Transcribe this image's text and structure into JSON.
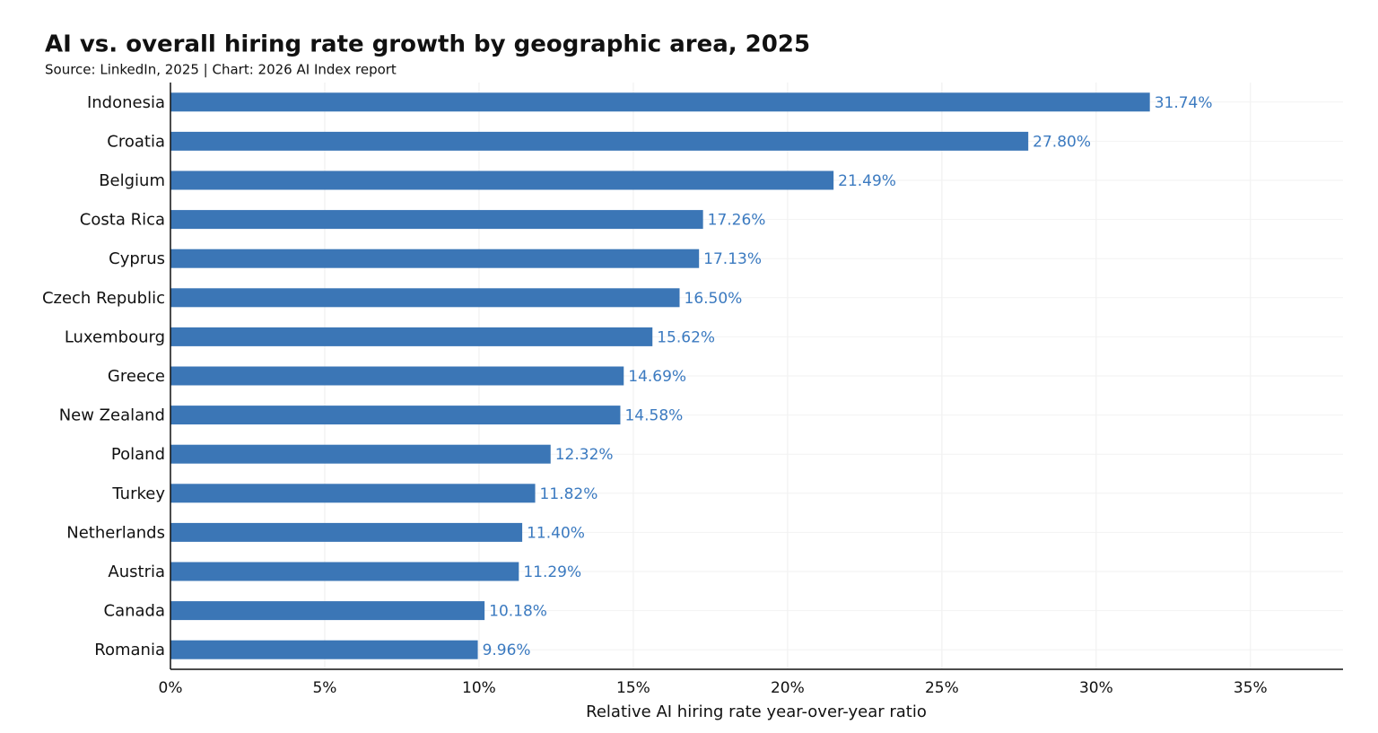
{
  "chart_data": {
    "type": "bar",
    "orientation": "horizontal",
    "title": "AI vs. overall hiring rate growth by geographic area, 2025",
    "subtitle": "Source: LinkedIn, 2025 | Chart: 2026 AI Index report",
    "x_label": "Relative AI hiring rate year-over-year ratio",
    "categories": [
      "Indonesia",
      "Croatia",
      "Belgium",
      "Costa Rica",
      "Cyprus",
      "Czech Republic",
      "Luxembourg",
      "Greece",
      "New Zealand",
      "Poland",
      "Turkey",
      "Netherlands",
      "Austria",
      "Canada",
      "Romania"
    ],
    "values": [
      31.74,
      27.8,
      21.49,
      17.26,
      17.13,
      16.5,
      15.62,
      14.69,
      14.58,
      12.32,
      11.82,
      11.4,
      11.29,
      10.18,
      9.96
    ],
    "value_labels": [
      "31.74%",
      "27.80%",
      "21.49%",
      "17.26%",
      "17.13%",
      "16.50%",
      "15.62%",
      "14.69%",
      "14.58%",
      "12.32%",
      "11.82%",
      "11.40%",
      "11.29%",
      "10.18%",
      "9.96%"
    ],
    "color": "#3b76b6",
    "label_color": "#3b7ac0",
    "xlim": [
      0,
      38
    ],
    "xticks": [
      {
        "value": 0,
        "label": "0%"
      },
      {
        "value": 5,
        "label": "5%"
      },
      {
        "value": 10,
        "label": "10%"
      },
      {
        "value": 15,
        "label": "15%"
      },
      {
        "value": 20,
        "label": "20%"
      },
      {
        "value": 25,
        "label": "25%"
      },
      {
        "value": 30,
        "label": "30%"
      },
      {
        "value": 35,
        "label": "35%"
      }
    ],
    "grid": true
  }
}
